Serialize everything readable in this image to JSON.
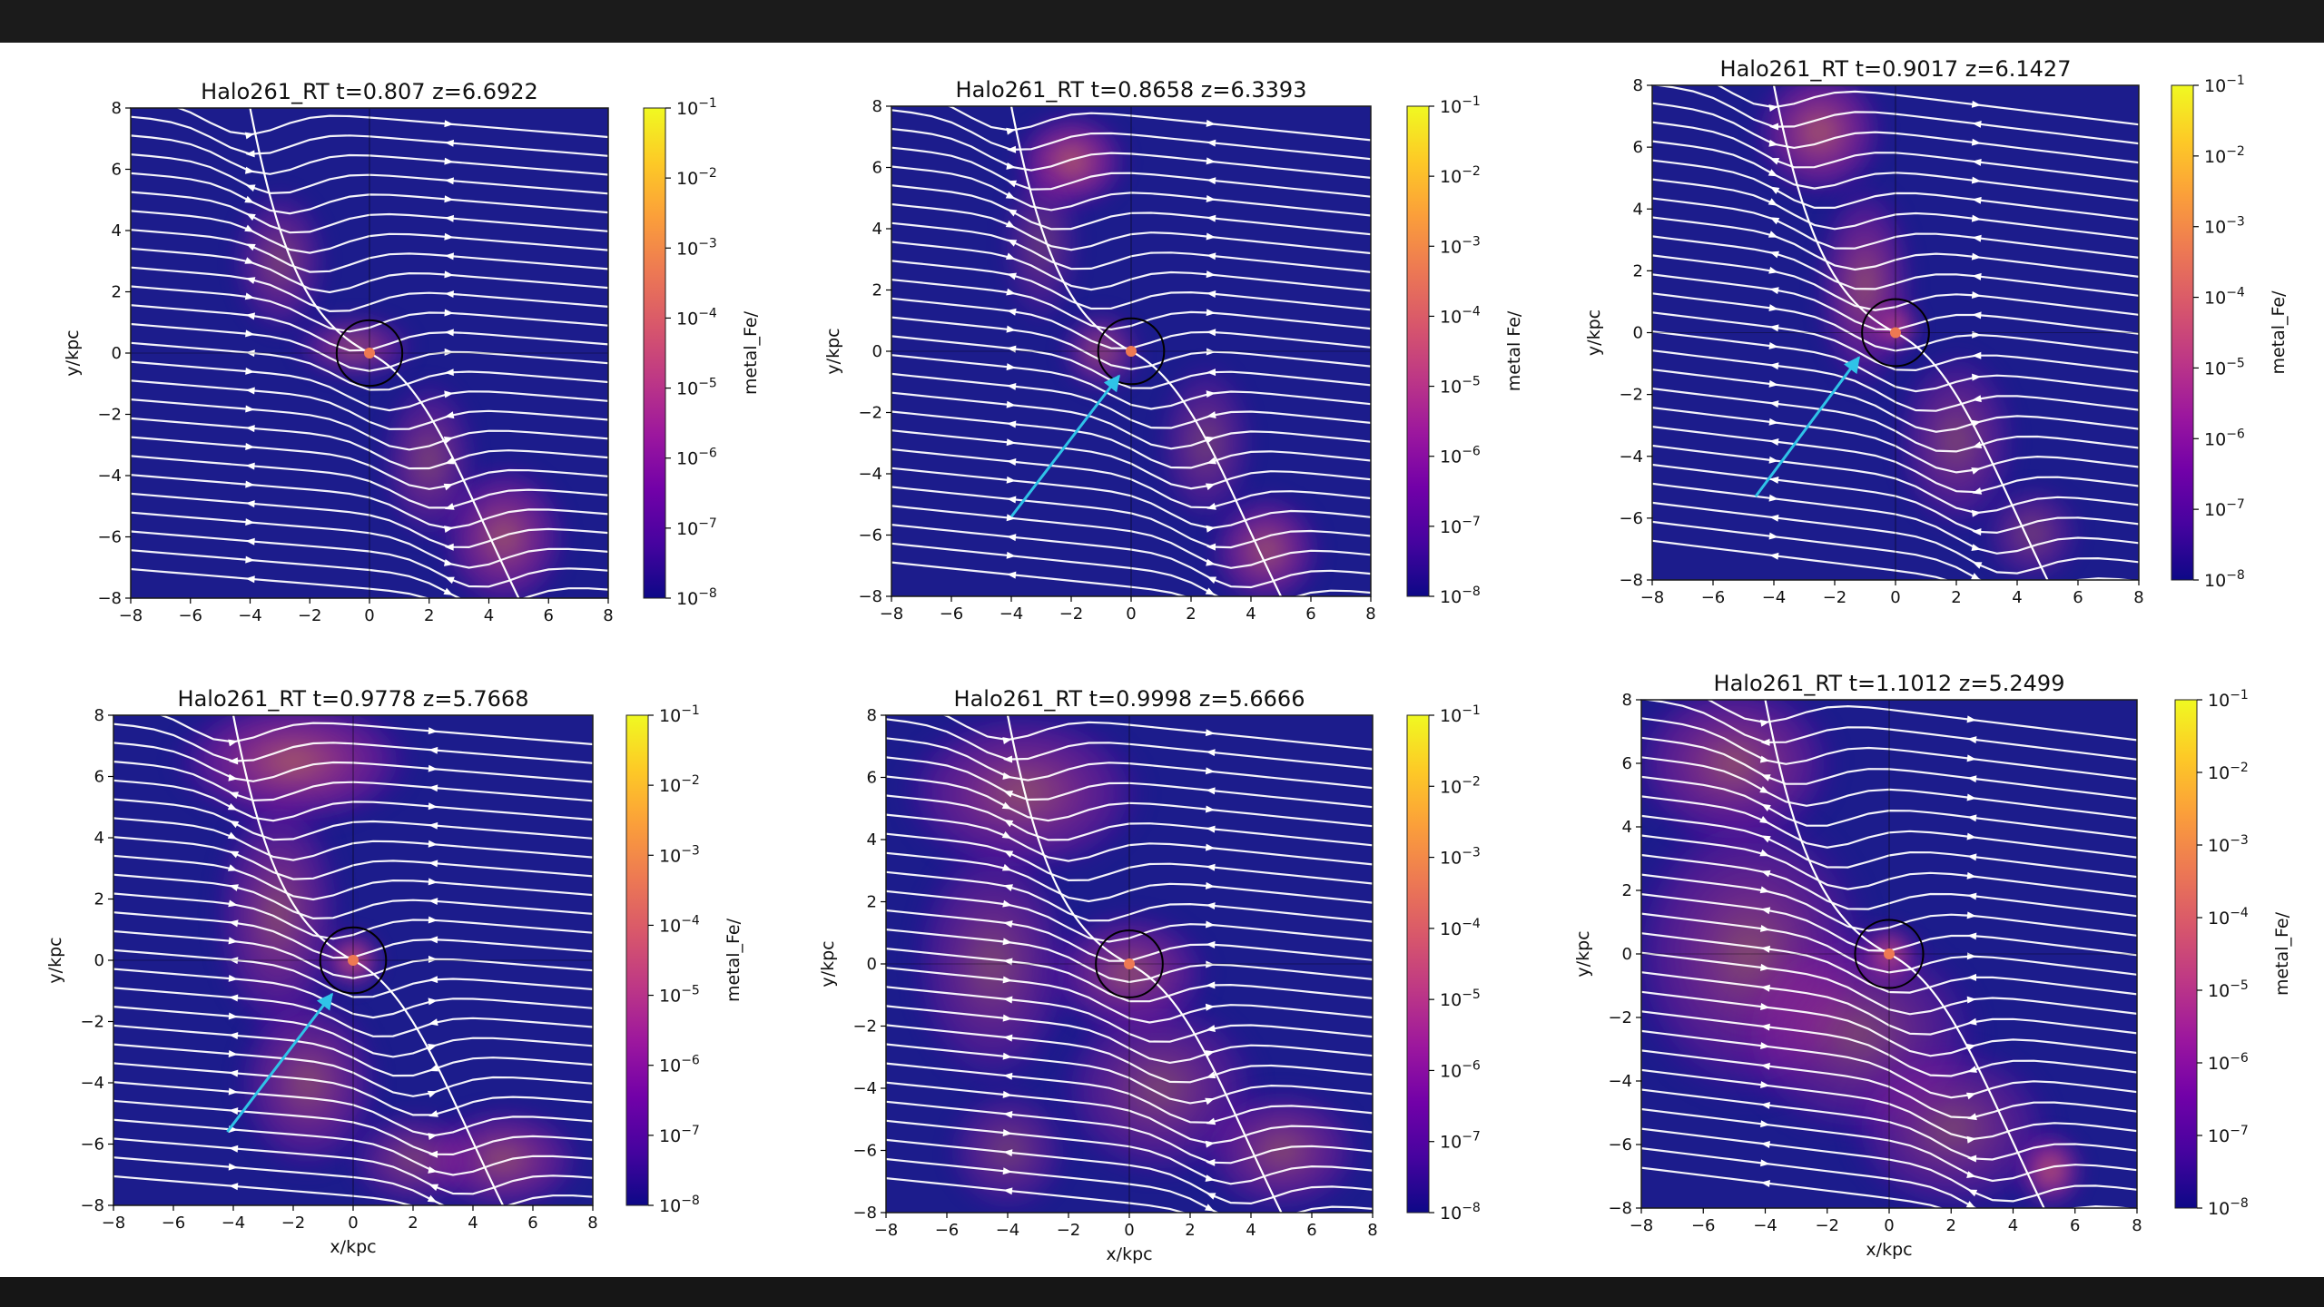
{
  "figure": {
    "background": "#ffffff",
    "frame_color": "#1a1a1a"
  },
  "colormap": {
    "name": "plasma",
    "stops": [
      "#0d0887",
      "#46039f",
      "#7201a8",
      "#9c179e",
      "#bd3786",
      "#d8576b",
      "#ed7953",
      "#fb9f3a",
      "#fdca26",
      "#f0f921"
    ],
    "field_color": "#1c1c8c"
  },
  "panels": [
    {
      "title": "Halo261_RT  t=0.807 z=6.6922",
      "ylabel": "y/kpc",
      "xlabel": "",
      "colorbar_label": "metal_Fe/",
      "arrow": null,
      "chart_data": {
        "type": "heatmap",
        "field": "metal_Fe",
        "xlim": [
          -8,
          8
        ],
        "ylim": [
          -8,
          8
        ],
        "x_ticks": [
          "−8",
          "−6",
          "−4",
          "−2",
          "0",
          "2",
          "4",
          "6",
          "8"
        ],
        "y_ticks": [
          "8",
          "6",
          "4",
          "2",
          "0",
          "−2",
          "−4",
          "−6",
          "−8"
        ],
        "colorbar_range": [
          1e-08,
          0.1
        ],
        "colorbar_ticks": [
          {
            "base": "10",
            "exp": "−1"
          },
          {
            "base": "10",
            "exp": "−2"
          },
          {
            "base": "10",
            "exp": "−3"
          },
          {
            "base": "10",
            "exp": "−4"
          },
          {
            "base": "10",
            "exp": "−5"
          },
          {
            "base": "10",
            "exp": "−6"
          },
          {
            "base": "10",
            "exp": "−7"
          },
          {
            "base": "10",
            "exp": "−8"
          }
        ],
        "streamline_color": "#ffffff",
        "overlays": [
          "streamlines",
          "circle at origin",
          "crosshair at origin"
        ]
      }
    },
    {
      "title": "Halo261_RT  t=0.8658 z=6.3393",
      "ylabel": "y/kpc",
      "xlabel": "",
      "colorbar_label": "metal Fe/",
      "arrow": {
        "from": [
          -4,
          -5.4
        ],
        "to": [
          -0.4,
          -0.8
        ],
        "color": "#2fc3e8"
      },
      "chart_data": {
        "type": "heatmap",
        "field": "metal_Fe",
        "xlim": [
          -8,
          8
        ],
        "ylim": [
          -8,
          8
        ],
        "x_ticks": [
          "−8",
          "−6",
          "−4",
          "−2",
          "0",
          "2",
          "4",
          "6",
          "8"
        ],
        "y_ticks": [
          "8",
          "6",
          "4",
          "2",
          "0",
          "−2",
          "−4",
          "−6",
          "−8"
        ],
        "colorbar_range": [
          1e-08,
          0.1
        ],
        "colorbar_ticks": [
          {
            "base": "10",
            "exp": "−1"
          },
          {
            "base": "10",
            "exp": "−2"
          },
          {
            "base": "10",
            "exp": "−3"
          },
          {
            "base": "10",
            "exp": "−4"
          },
          {
            "base": "10",
            "exp": "−5"
          },
          {
            "base": "10",
            "exp": "−6"
          },
          {
            "base": "10",
            "exp": "−7"
          },
          {
            "base": "10",
            "exp": "−8"
          }
        ],
        "streamline_color": "#ffffff",
        "overlays": [
          "streamlines",
          "circle at origin",
          "crosshair at origin",
          "cyan arrow"
        ]
      }
    },
    {
      "title": "Halo261_RT  t=0.9017 z=6.1427",
      "ylabel": "y/kpc",
      "xlabel": "",
      "colorbar_label": "metal_Fe/",
      "arrow": {
        "from": [
          -4.6,
          -5.3
        ],
        "to": [
          -1.2,
          -0.8
        ],
        "color": "#2fc3e8"
      },
      "chart_data": {
        "type": "heatmap",
        "field": "metal_Fe",
        "xlim": [
          -8,
          8
        ],
        "ylim": [
          -8,
          8
        ],
        "x_ticks": [
          "−8",
          "−6",
          "−4",
          "−2",
          "0",
          "2",
          "4",
          "6",
          "8"
        ],
        "y_ticks": [
          "8",
          "6",
          "4",
          "2",
          "0",
          "−2",
          "−4",
          "−6",
          "−8"
        ],
        "colorbar_range": [
          1e-08,
          0.1
        ],
        "colorbar_ticks": [
          {
            "base": "10",
            "exp": "−1"
          },
          {
            "base": "10",
            "exp": "−2"
          },
          {
            "base": "10",
            "exp": "−3"
          },
          {
            "base": "10",
            "exp": "−4"
          },
          {
            "base": "10",
            "exp": "−5"
          },
          {
            "base": "10",
            "exp": "−6"
          },
          {
            "base": "10",
            "exp": "−7"
          },
          {
            "base": "10",
            "exp": "−8"
          }
        ],
        "streamline_color": "#ffffff",
        "overlays": [
          "streamlines",
          "circle at origin",
          "crosshair at origin",
          "cyan arrow"
        ]
      }
    },
    {
      "title": "Halo261_RT  t=0.9778 z=5.7668",
      "ylabel": "y/kpc",
      "xlabel": "x/kpc",
      "colorbar_label": "metal_Fe/",
      "arrow": {
        "from": [
          -4.2,
          -5.6
        ],
        "to": [
          -0.7,
          -1.1
        ],
        "color": "#2fc3e8"
      },
      "chart_data": {
        "type": "heatmap",
        "field": "metal_Fe",
        "xlim": [
          -8,
          8
        ],
        "ylim": [
          -8,
          8
        ],
        "x_ticks": [
          "−8",
          "−6",
          "−4",
          "−2",
          "0",
          "2",
          "4",
          "6",
          "8"
        ],
        "y_ticks": [
          "8",
          "6",
          "4",
          "2",
          "0",
          "−2",
          "−4",
          "−6",
          "−8"
        ],
        "colorbar_range": [
          1e-08,
          0.1
        ],
        "colorbar_ticks": [
          {
            "base": "10",
            "exp": "−1"
          },
          {
            "base": "10",
            "exp": "−2"
          },
          {
            "base": "10",
            "exp": "−3"
          },
          {
            "base": "10",
            "exp": "−4"
          },
          {
            "base": "10",
            "exp": "−5"
          },
          {
            "base": "10",
            "exp": "−6"
          },
          {
            "base": "10",
            "exp": "−7"
          },
          {
            "base": "10",
            "exp": "−8"
          }
        ],
        "streamline_color": "#ffffff",
        "overlays": [
          "streamlines",
          "circle at origin",
          "crosshair at origin",
          "cyan arrow"
        ]
      }
    },
    {
      "title": "Halo261_RT  t=0.9998 z=5.6666",
      "ylabel": "y/kpc",
      "xlabel": "x/kpc",
      "colorbar_label": "",
      "arrow": null,
      "chart_data": {
        "type": "heatmap",
        "field": "metal_Fe",
        "xlim": [
          -8,
          8
        ],
        "ylim": [
          -8,
          8
        ],
        "x_ticks": [
          "−8",
          "−6",
          "−4",
          "−2",
          "0",
          "2",
          "4",
          "6",
          "8"
        ],
        "y_ticks": [
          "8",
          "6",
          "4",
          "2",
          "0",
          "−2",
          "−4",
          "−6",
          "−8"
        ],
        "colorbar_range": [
          1e-08,
          0.1
        ],
        "colorbar_ticks": [
          {
            "base": "10",
            "exp": "−1"
          },
          {
            "base": "10",
            "exp": "−2"
          },
          {
            "base": "10",
            "exp": "−3"
          },
          {
            "base": "10",
            "exp": "−4"
          },
          {
            "base": "10",
            "exp": "−5"
          },
          {
            "base": "10",
            "exp": "−6"
          },
          {
            "base": "10",
            "exp": "−7"
          },
          {
            "base": "10",
            "exp": "−8"
          }
        ],
        "streamline_color": "#ffffff",
        "overlays": [
          "streamlines",
          "circle at origin",
          "crosshair at origin"
        ]
      }
    },
    {
      "title": "Halo261_RT  t=1.1012 z=5.2499",
      "ylabel": "y/kpc",
      "xlabel": "x/kpc",
      "colorbar_label": "metal_Fe/",
      "arrow": null,
      "chart_data": {
        "type": "heatmap",
        "field": "metal_Fe",
        "xlim": [
          -8,
          8
        ],
        "ylim": [
          -8,
          8
        ],
        "x_ticks": [
          "−8",
          "−6",
          "−4",
          "−2",
          "0",
          "2",
          "4",
          "6",
          "8"
        ],
        "y_ticks": [
          "8",
          "6",
          "4",
          "2",
          "0",
          "−2",
          "−4",
          "−6",
          "−8"
        ],
        "colorbar_range": [
          1e-08,
          0.1
        ],
        "colorbar_ticks": [
          {
            "base": "10",
            "exp": "−1"
          },
          {
            "base": "10",
            "exp": "−2"
          },
          {
            "base": "10",
            "exp": "−3"
          },
          {
            "base": "10",
            "exp": "−4"
          },
          {
            "base": "10",
            "exp": "−5"
          },
          {
            "base": "10",
            "exp": "−6"
          },
          {
            "base": "10",
            "exp": "−7"
          },
          {
            "base": "10",
            "exp": "−8"
          }
        ],
        "streamline_color": "#ffffff",
        "overlays": [
          "streamlines",
          "circle at origin",
          "crosshair at origin"
        ]
      }
    }
  ]
}
